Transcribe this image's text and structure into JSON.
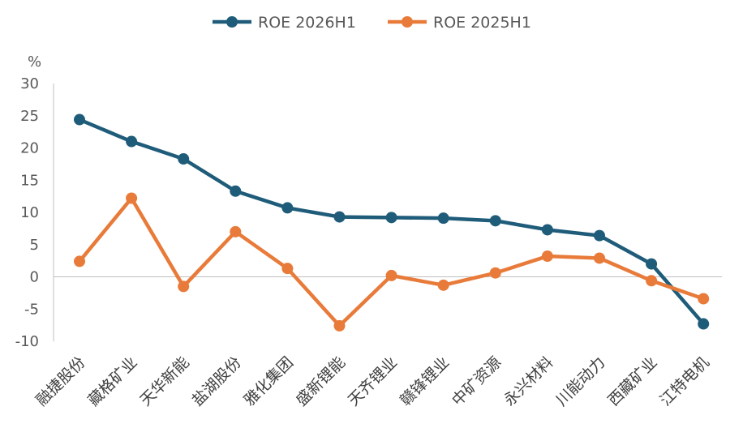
{
  "chart_data": {
    "type": "line",
    "ylabel": "%",
    "ylim": [
      -10,
      30
    ],
    "yticks": [
      30,
      25,
      20,
      15,
      10,
      5,
      0,
      -5,
      -10
    ],
    "grid": false,
    "legend_position": "top-center",
    "categories": [
      "融捷股份",
      "藏格矿业",
      "天华新能",
      "盐湖股份",
      "雅化集团",
      "盛新锂能",
      "天齐锂业",
      "赣锋锂业",
      "中矿资源",
      "永兴材料",
      "川能动力",
      "西藏矿业",
      "江特电机"
    ],
    "series": [
      {
        "name": "ROE 2026H1",
        "color": "#1F5C7A",
        "values": [
          24.4,
          21.0,
          18.3,
          13.3,
          10.7,
          9.3,
          9.2,
          9.1,
          8.7,
          7.3,
          6.4,
          2.0,
          -7.3
        ]
      },
      {
        "name": "ROE 2025H1",
        "color": "#E87B3A",
        "values": [
          2.4,
          12.2,
          -1.5,
          7.0,
          1.3,
          -7.6,
          0.2,
          -1.3,
          0.6,
          3.2,
          2.9,
          -0.6,
          -3.4
        ]
      }
    ]
  }
}
